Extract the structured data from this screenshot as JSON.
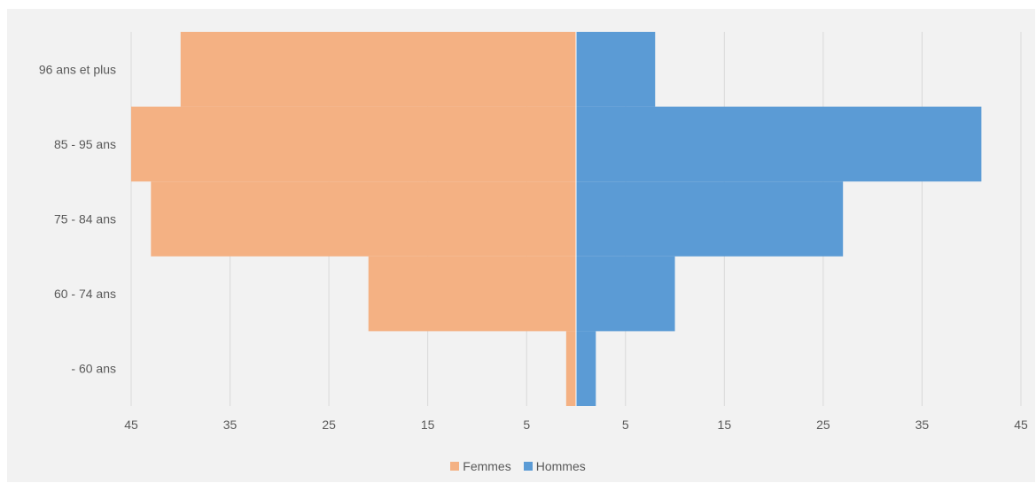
{
  "chart_data": {
    "type": "bar",
    "orientation": "horizontal-population-pyramid",
    "title": "",
    "categories": [
      "96 ans et plus",
      "85 - 95 ans",
      "75 - 84 ans",
      "60 - 74 ans",
      "- 60 ans"
    ],
    "series": [
      {
        "name": "Femmes",
        "color": "#f4b183",
        "side": "left",
        "values": [
          40,
          45,
          43,
          21,
          1
        ]
      },
      {
        "name": "Hommes",
        "color": "#5b9bd5",
        "side": "right",
        "values": [
          8,
          41,
          27,
          10,
          2
        ]
      }
    ],
    "x_tick_labels": [
      "45",
      "35",
      "25",
      "15",
      "5",
      "5",
      "15",
      "25",
      "35",
      "45"
    ],
    "xlim": [
      -45,
      45
    ],
    "grid": "vertical",
    "legend_position": "bottom"
  }
}
